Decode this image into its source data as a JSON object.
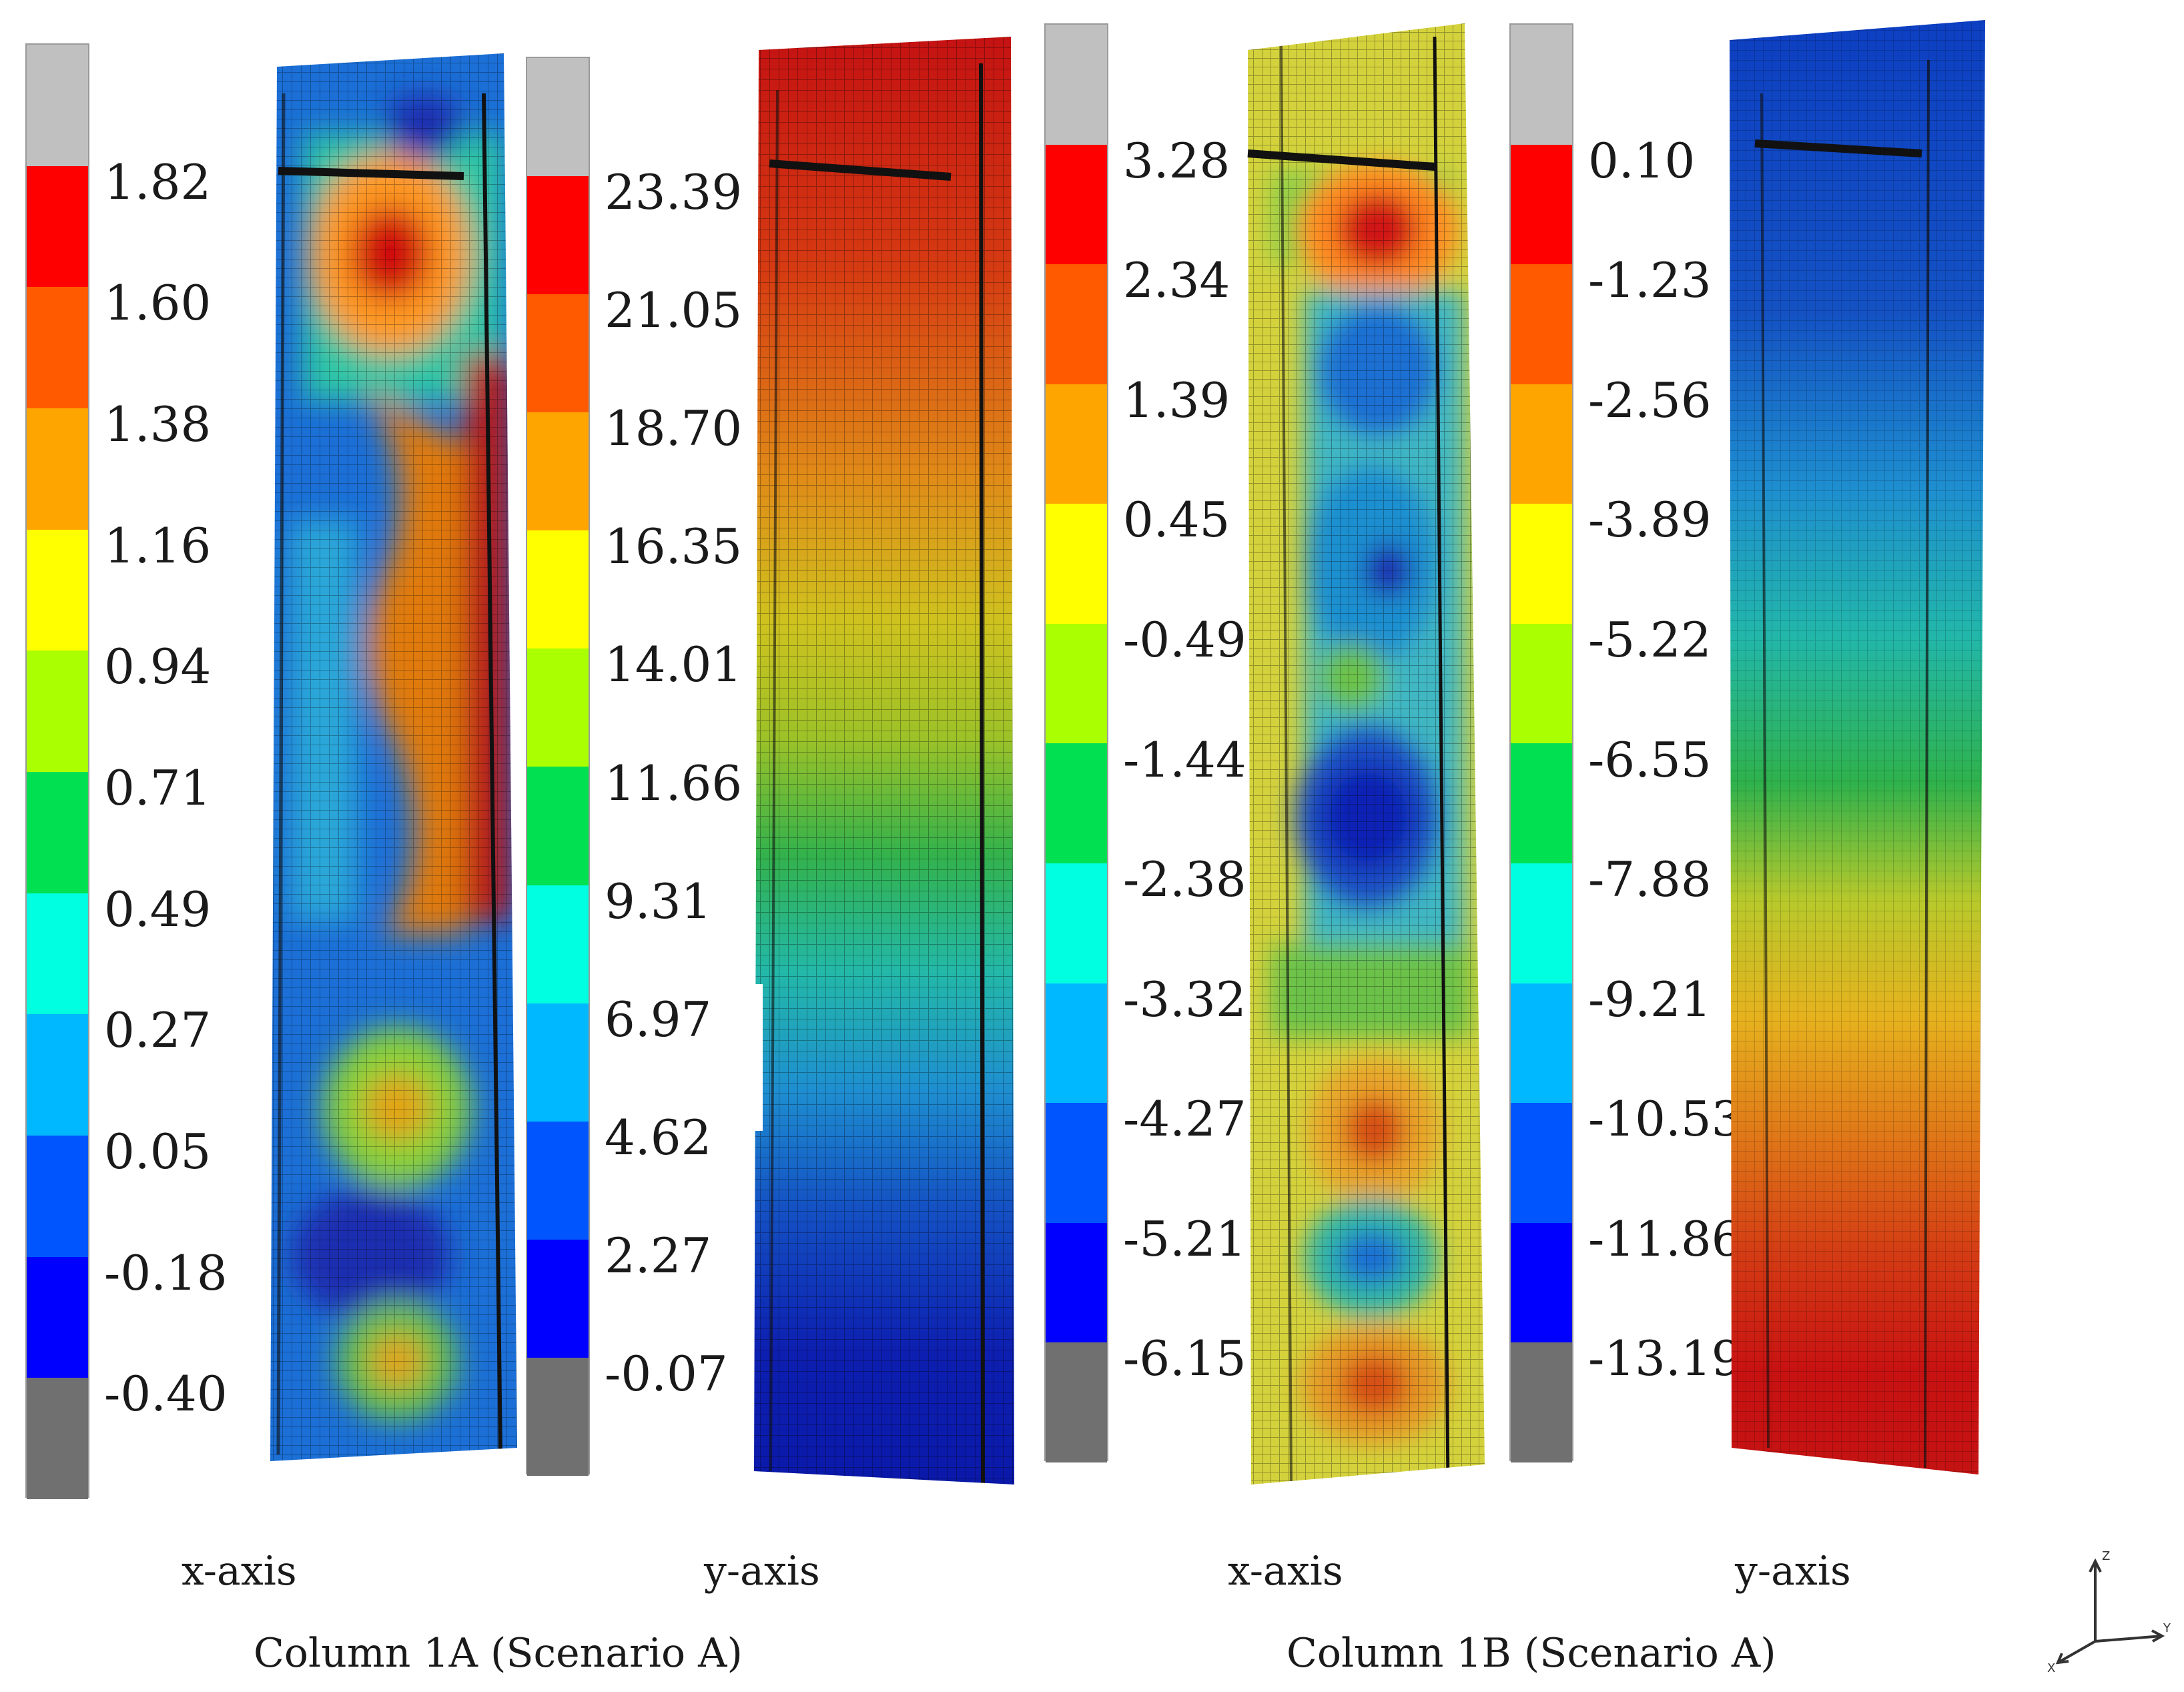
{
  "captions": {
    "col1a_x": "x-axis",
    "col1a_y": "y-axis",
    "col1b_x": "x-axis",
    "col1b_y": "y-axis",
    "col1a_title": "Column 1A (Scenario A)",
    "col1b_title": "Column 1B (Scenario A)"
  },
  "legends": [
    {
      "id": "l1",
      "values": [
        "1.82",
        "1.60",
        "1.38",
        "1.16",
        "0.94",
        "0.71",
        "0.49",
        "0.27",
        "0.05",
        "-0.18",
        "-0.40"
      ]
    },
    {
      "id": "l2",
      "values": [
        "23.39",
        "21.05",
        "18.70",
        "16.35",
        "14.01",
        "11.66",
        "9.31",
        "6.97",
        "4.62",
        "2.27",
        "-0.07"
      ]
    },
    {
      "id": "l3",
      "values": [
        "3.28",
        "2.34",
        "1.39",
        "0.45",
        "-0.49",
        "-1.44",
        "-2.38",
        "-3.32",
        "-4.27",
        "-5.21",
        "-6.15"
      ]
    },
    {
      "id": "l4",
      "values": [
        "0.10",
        "-1.23",
        "-2.56",
        "-3.89",
        "-5.22",
        "-6.55",
        "-7.88",
        "-9.21",
        "-10.53",
        "-11.86",
        "-13.19"
      ]
    }
  ],
  "colors": {
    "scale": [
      "#c0c0c0",
      "#ff0000",
      "#ff5a00",
      "#ffa500",
      "#ffff00",
      "#aaff00",
      "#00e050",
      "#00ffe0",
      "#00b8ff",
      "#0055ff",
      "#0000ff",
      "#707070"
    ],
    "mesh": "#2a2a2a"
  },
  "triad_labels": {
    "z": "Z",
    "y": "Y",
    "x": "X"
  }
}
